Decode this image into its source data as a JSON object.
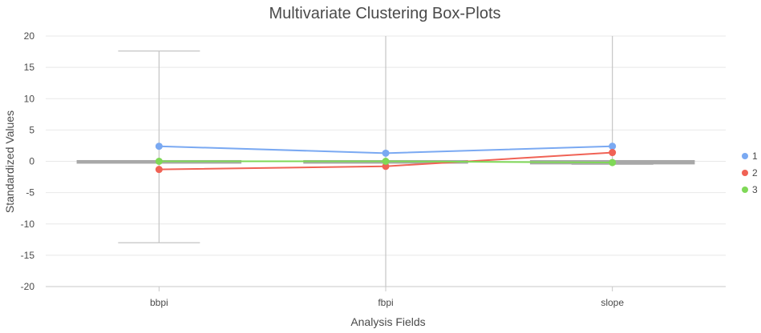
{
  "chart_data": {
    "type": "boxplot-line",
    "title": "Multivariate Clustering Box-Plots",
    "xlabel": "Analysis Fields",
    "ylabel": "Standardized Values",
    "categories": [
      "bbpi",
      "fbpi",
      "slope"
    ],
    "ylim": [
      -20,
      20
    ],
    "yticks": [
      20,
      15,
      10,
      5,
      0,
      -5,
      -10,
      -15,
      -20
    ],
    "grid": true,
    "legend_position": "right",
    "boxplots": [
      {
        "category": "bbpi",
        "whisker_low": -13,
        "q1": -0.1,
        "median": 0,
        "q3": 0.1,
        "whisker_high": 17.6
      },
      {
        "category": "fbpi",
        "whisker_low": -20,
        "q1": -0.1,
        "median": 0,
        "q3": 0.1,
        "whisker_high": 20
      },
      {
        "category": "slope",
        "whisker_low": -0.5,
        "q1": -0.4,
        "median": -0.2,
        "q3": 0.1,
        "whisker_high": 20
      }
    ],
    "series": [
      {
        "name": "1",
        "color": "#7aa9f2",
        "values": [
          2.4,
          1.3,
          2.4
        ]
      },
      {
        "name": "2",
        "color": "#f06255",
        "values": [
          -1.3,
          -0.8,
          1.4
        ]
      },
      {
        "name": "3",
        "color": "#7fd857",
        "values": [
          0.0,
          0.0,
          -0.2
        ]
      }
    ],
    "colors": {
      "box": "#a8a8a8",
      "whisker": "#c4c4c4",
      "grid": "#e8e8e8",
      "axis": "#c8c8c8"
    }
  }
}
